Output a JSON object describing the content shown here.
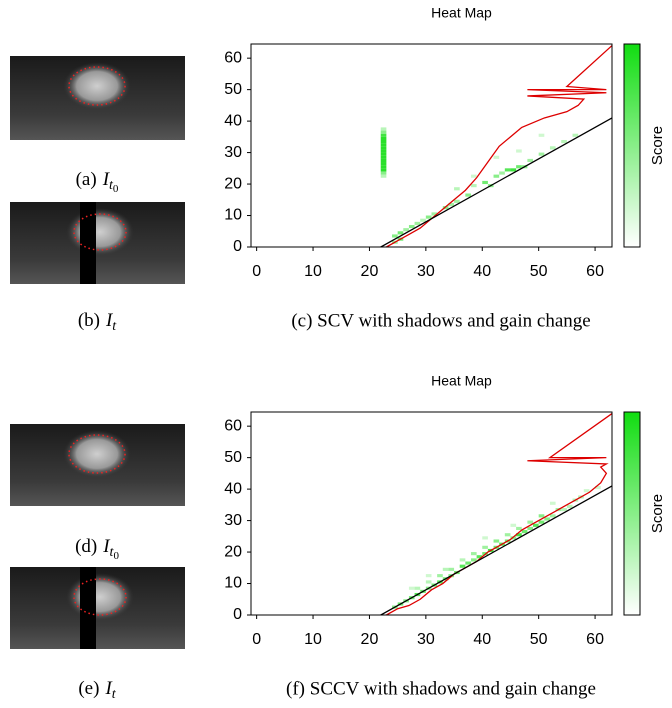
{
  "chart_data": [
    {
      "type": "heatmap",
      "title": "Heat Map",
      "caption": "(c) SCV with shadows and gain change",
      "xlim": [
        -1,
        63
      ],
      "ylim": [
        0,
        64.5
      ],
      "xticks": [
        0,
        10,
        20,
        30,
        40,
        50,
        60
      ],
      "yticks": [
        0,
        10,
        20,
        30,
        40,
        50,
        60
      ],
      "colorbar_label": "Score",
      "colormap": [
        "#ffffff",
        "#11dd11"
      ],
      "cells": {
        "x": [
          22,
          22,
          22,
          22,
          22,
          22,
          22,
          22,
          22,
          22,
          22,
          22,
          22,
          22,
          22,
          22,
          24,
          25,
          26,
          27,
          28,
          29,
          30,
          31,
          33,
          35,
          37,
          38,
          40,
          42,
          43,
          44,
          45,
          46,
          47,
          48,
          50,
          52,
          54,
          56,
          35,
          38,
          42,
          46,
          50,
          41,
          34,
          25,
          24
        ],
        "y": [
          22,
          23,
          24,
          25,
          26,
          27,
          28,
          29,
          30,
          31,
          32,
          33,
          34,
          35,
          36,
          37,
          3,
          4,
          5,
          6,
          7,
          8,
          9,
          10,
          12,
          14,
          16,
          19,
          20,
          22,
          23,
          24,
          24,
          25,
          25,
          27,
          29,
          31,
          33,
          35,
          18,
          22,
          28,
          30,
          35,
          19,
          13,
          2,
          1
        ],
        "values": [
          0.3,
          0.5,
          0.9,
          0.9,
          0.9,
          0.9,
          0.9,
          0.9,
          0.9,
          0.9,
          0.9,
          0.9,
          0.9,
          0.8,
          0.5,
          0.3,
          0.5,
          0.6,
          0.4,
          0.5,
          0.4,
          0.3,
          0.5,
          0.4,
          0.5,
          0.4,
          0.5,
          0.3,
          0.6,
          0.5,
          0.4,
          0.7,
          0.8,
          0.6,
          0.5,
          0.4,
          0.4,
          0.3,
          0.3,
          0.3,
          0.3,
          0.2,
          0.2,
          0.2,
          0.2,
          0.5,
          0.4,
          0.6,
          0.4
        ]
      },
      "lines": [
        {
          "color": "#dd0000",
          "x": [
            23,
            25,
            27,
            29,
            31,
            33,
            35,
            37,
            39,
            41,
            43,
            45,
            47,
            51,
            55,
            57,
            58,
            48,
            62,
            48,
            62,
            55,
            63
          ],
          "y": [
            0,
            2,
            4,
            6,
            9,
            12,
            15,
            18,
            22,
            27,
            32,
            35,
            38,
            41,
            43,
            45,
            47,
            48,
            49,
            50,
            50,
            51,
            64
          ]
        },
        {
          "color": "#000000",
          "x": [
            22,
            63
          ],
          "y": [
            0,
            41
          ]
        }
      ]
    },
    {
      "type": "heatmap",
      "title": "Heat Map",
      "caption": "(f) SCCV with shadows and gain change",
      "xlim": [
        -1,
        63
      ],
      "ylim": [
        0,
        64.5
      ],
      "xticks": [
        0,
        10,
        20,
        30,
        40,
        50,
        60
      ],
      "yticks": [
        0,
        10,
        20,
        30,
        40,
        50,
        60
      ],
      "colorbar_label": "Score",
      "colormap": [
        "#ffffff",
        "#11dd11"
      ],
      "cells": {
        "x": [
          24,
          25,
          26,
          27,
          28,
          28,
          29,
          30,
          30,
          31,
          32,
          32,
          33,
          34,
          34,
          35,
          36,
          36,
          37,
          38,
          38,
          39,
          40,
          40,
          41,
          42,
          42,
          43,
          44,
          44,
          45,
          46,
          46,
          47,
          48,
          48,
          49,
          50,
          50,
          51,
          52,
          53,
          54,
          55,
          56,
          57,
          58,
          60,
          33,
          40,
          45,
          52,
          30,
          27
        ],
        "y": [
          2,
          3,
          4,
          5,
          6,
          8,
          7,
          8,
          10,
          9,
          10,
          12,
          11,
          12,
          14,
          13,
          15,
          17,
          16,
          17,
          19,
          18,
          19,
          21,
          20,
          21,
          23,
          22,
          23,
          25,
          24,
          25,
          27,
          26,
          27,
          29,
          28,
          29,
          31,
          30,
          31,
          33,
          33,
          34,
          36,
          37,
          39,
          40,
          14,
          24,
          28,
          35,
          12,
          8
        ],
        "values": [
          0.5,
          0.6,
          0.5,
          0.6,
          0.7,
          0.3,
          0.6,
          0.5,
          0.3,
          0.6,
          0.7,
          0.4,
          0.6,
          0.5,
          0.4,
          0.6,
          0.7,
          0.3,
          0.6,
          0.5,
          0.4,
          0.7,
          0.6,
          0.4,
          0.8,
          0.6,
          0.5,
          0.7,
          0.6,
          0.4,
          0.5,
          0.8,
          0.4,
          0.6,
          0.5,
          0.4,
          0.7,
          0.6,
          0.5,
          0.5,
          0.4,
          0.4,
          0.3,
          0.3,
          0.3,
          0.3,
          0.2,
          0.2,
          0.3,
          0.2,
          0.2,
          0.2,
          0.2,
          0.2
        ]
      },
      "lines": [
        {
          "color": "#dd0000",
          "x": [
            23,
            25,
            27,
            29,
            31,
            33,
            35,
            37,
            39,
            41,
            43,
            45,
            47,
            49,
            51,
            53,
            55,
            57,
            59,
            61,
            62,
            61,
            62,
            48,
            62,
            52,
            63
          ],
          "y": [
            0,
            2,
            3,
            5,
            8,
            10,
            13,
            15,
            17,
            20,
            22,
            24,
            27,
            29,
            31,
            33,
            35,
            37,
            39,
            42,
            45,
            47,
            48,
            49,
            50,
            50,
            64
          ]
        },
        {
          "color": "#000000",
          "x": [
            22,
            63
          ],
          "y": [
            0,
            41
          ]
        }
      ]
    }
  ],
  "image_captions": [
    {
      "label": "(a)",
      "symbol": "I",
      "sub": "t",
      "subsub": "0"
    },
    {
      "label": "(b)",
      "symbol": "I",
      "sub": "t"
    },
    {
      "label": "(d)",
      "symbol": "I",
      "sub": "t",
      "subsub": "0"
    },
    {
      "label": "(e)",
      "symbol": "I",
      "sub": "t"
    }
  ]
}
